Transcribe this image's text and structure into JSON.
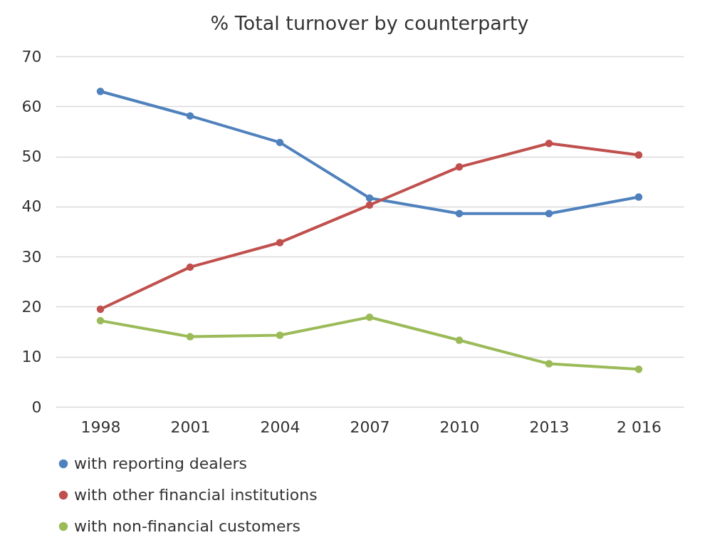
{
  "chart_data": {
    "type": "line",
    "title": "% Total turnover by counterparty",
    "categories": [
      "1998",
      "2001",
      "2004",
      "2007",
      "2010",
      "2013",
      "2 016"
    ],
    "series": [
      {
        "name": "with reporting dealers",
        "color": "#4f81bd",
        "values": [
          63.0,
          58.1,
          52.8,
          41.7,
          38.6,
          38.6,
          41.9
        ]
      },
      {
        "name": "with other financial institutions",
        "color": "#c0504d",
        "values": [
          19.5,
          27.9,
          32.8,
          40.3,
          47.9,
          52.6,
          50.3
        ]
      },
      {
        "name": "with non-financial customers",
        "color": "#9bbb59",
        "values": [
          17.2,
          14.0,
          14.3,
          17.9,
          13.3,
          8.6,
          7.5
        ]
      }
    ],
    "ylim": [
      0,
      70
    ],
    "yticks": [
      0,
      10,
      20,
      30,
      40,
      50,
      60,
      70
    ],
    "grid": "y",
    "legend": "bottom",
    "marker": "circle",
    "line_style": "solid"
  }
}
